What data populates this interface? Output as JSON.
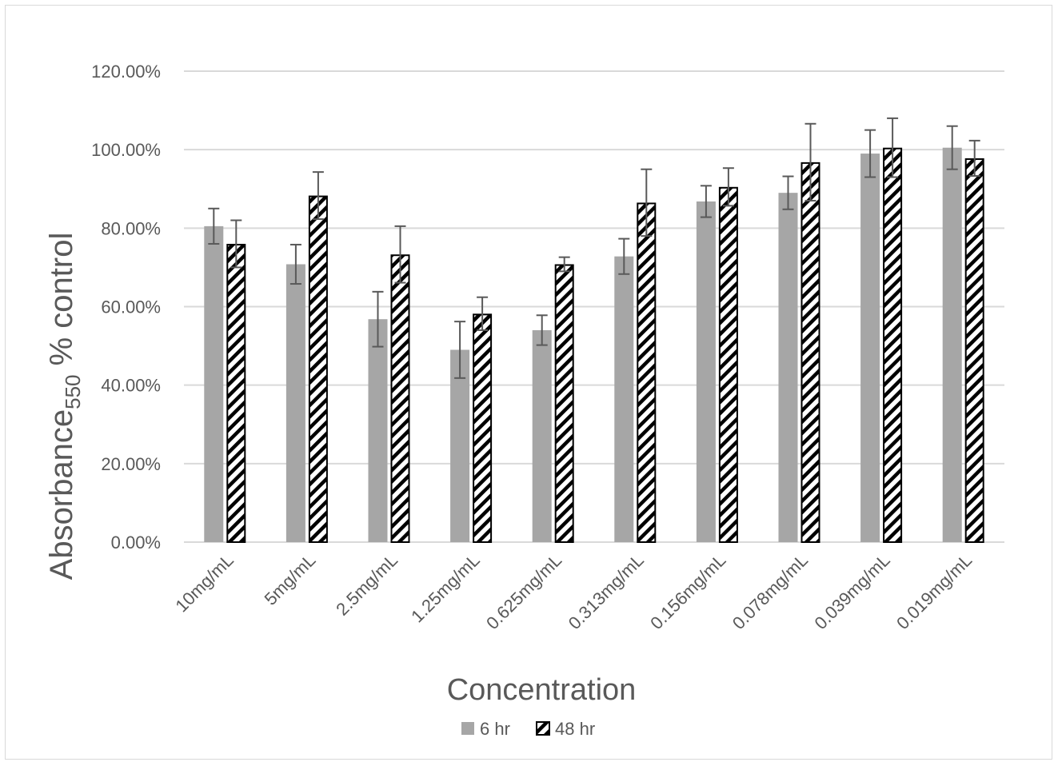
{
  "chart_data": {
    "type": "bar",
    "categories": [
      "10mg/mL",
      "5mg/mL",
      "2.5mg/mL",
      "1.25mg/mL",
      "0.625mg/mL",
      "0.313mg/mL",
      "0.156mg/mL",
      "0.078mg/mL",
      "0.039mg/mL",
      "0.019mg/mL"
    ],
    "series": [
      {
        "name": "6 hr",
        "pattern": "solid",
        "color": "#a6a6a6",
        "values": [
          80.5,
          70.8,
          56.8,
          49.0,
          54.0,
          72.8,
          86.8,
          89.0,
          99.0,
          100.5
        ],
        "error": [
          4.5,
          5.0,
          7.0,
          7.2,
          3.8,
          4.5,
          4.0,
          4.2,
          6.0,
          5.5
        ]
      },
      {
        "name": "48 hr",
        "pattern": "diagonal-hatch",
        "color": "#000000",
        "values": [
          76.0,
          88.3,
          73.3,
          58.2,
          70.8,
          86.5,
          90.5,
          96.8,
          100.5,
          97.8
        ],
        "error": [
          6.0,
          6.0,
          7.2,
          4.2,
          1.8,
          8.5,
          4.8,
          9.8,
          7.5,
          4.5
        ]
      }
    ],
    "ylim": [
      0,
      120
    ],
    "yticks": [
      "0.00%",
      "20.00%",
      "40.00%",
      "60.00%",
      "80.00%",
      "100.00%",
      "120.00%"
    ],
    "xlabel": "Concentration",
    "ylabel": {
      "main": "Absorbance",
      "subscript": "550",
      "rest": " % control"
    },
    "grid": true,
    "legend_position": "bottom"
  },
  "colors": {
    "bar_solid": "#a6a6a6",
    "hatch": "#000000",
    "grid": "#d9d9d9",
    "text": "#595959",
    "error_bar": "#595959"
  }
}
